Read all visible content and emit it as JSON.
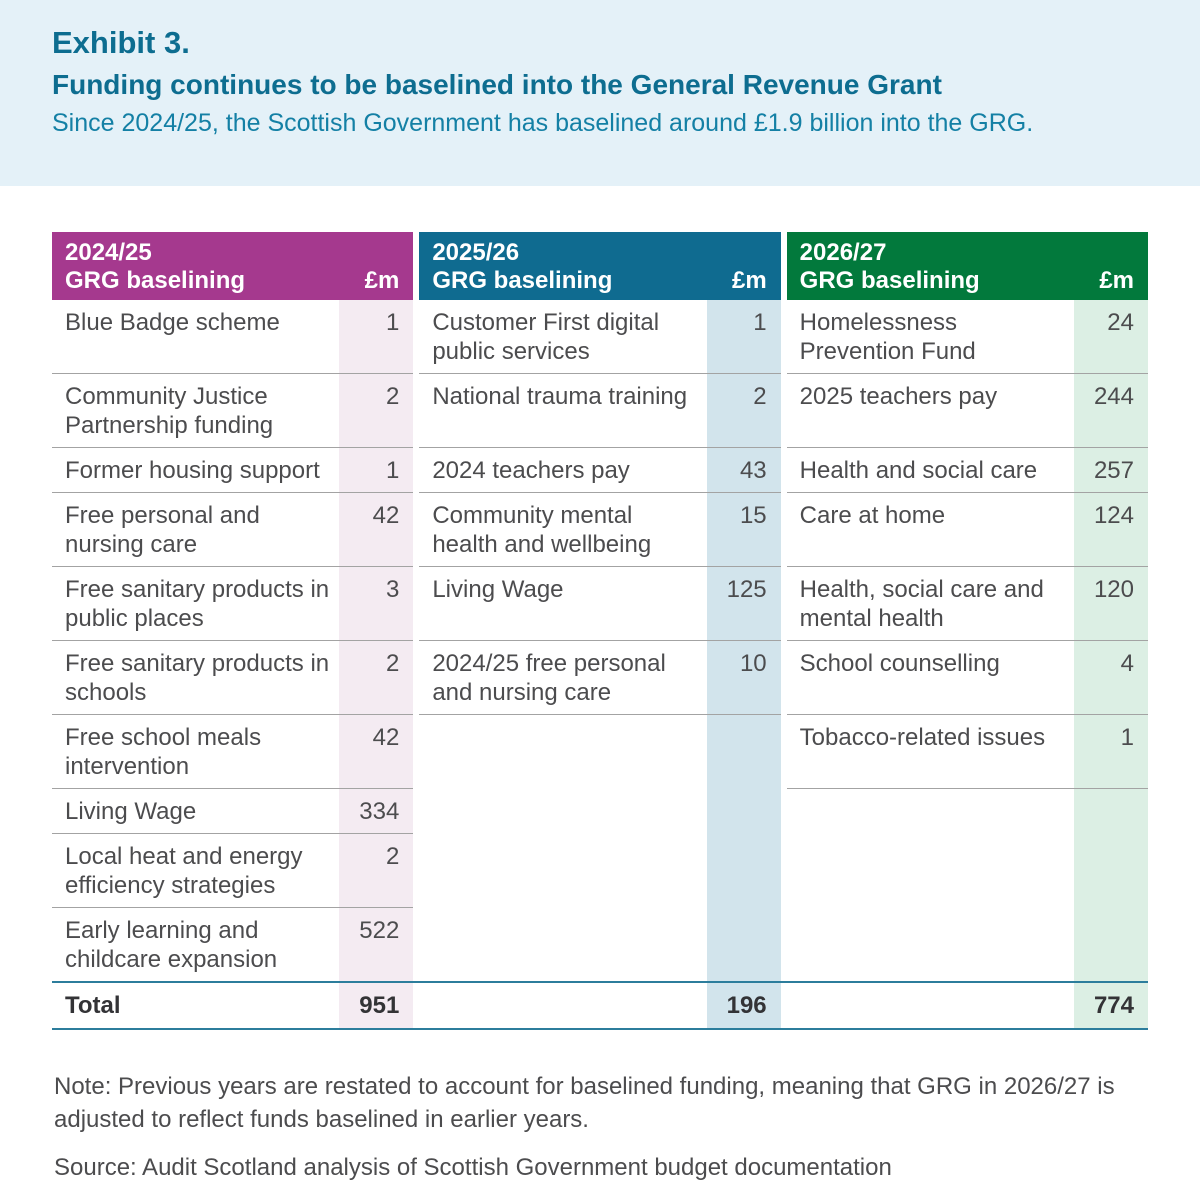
{
  "hero": {
    "exhibit": "Exhibit 3.",
    "title": "Funding continues to be baselined into the General Revenue Grant",
    "subtitle": "Since 2024/25, the Scottish Government has baselined around £1.9 billion into the GRG."
  },
  "table": {
    "total_label": "Total",
    "groups": [
      {
        "year": "2024/25",
        "label": "GRG baselining",
        "unit": "£m",
        "header_color": "#a5398e",
        "tint_color": "#f4ebf2",
        "total": "951"
      },
      {
        "year": "2025/26",
        "label": "GRG baselining",
        "unit": "£m",
        "header_color": "#0f6b90",
        "tint_color": "#d2e4ec",
        "total": "196"
      },
      {
        "year": "2026/27",
        "label": "GRG baselining",
        "unit": "£m",
        "header_color": "#02793c",
        "tint_color": "#dcefe4",
        "total": "774"
      }
    ],
    "rows": [
      [
        {
          "label": "Blue Badge scheme",
          "value": "1"
        },
        {
          "label": "Customer First digital public services",
          "value": "1"
        },
        {
          "label": "Homelessness Prevention Fund",
          "value": "24"
        }
      ],
      [
        {
          "label": "Community Justice Partnership funding",
          "value": "2"
        },
        {
          "label": "National trauma training",
          "value": "2"
        },
        {
          "label": "2025 teachers pay",
          "value": "244"
        }
      ],
      [
        {
          "label": "Former housing support",
          "value": "1"
        },
        {
          "label": "2024 teachers pay",
          "value": "43"
        },
        {
          "label": "Health and social care",
          "value": "257"
        }
      ],
      [
        {
          "label": "Free personal and nursing care",
          "value": "42"
        },
        {
          "label": "Community mental health and wellbeing",
          "value": "15"
        },
        {
          "label": "Care at home",
          "value": "124"
        }
      ],
      [
        {
          "label": "Free sanitary products in public places",
          "value": "3"
        },
        {
          "label": "Living Wage",
          "value": "125"
        },
        {
          "label": "Health, social care and mental health",
          "value": "120"
        }
      ],
      [
        {
          "label": "Free sanitary products in schools",
          "value": "2"
        },
        {
          "label": "2024/25 free personal and nursing care",
          "value": "10"
        },
        {
          "label": "School counselling",
          "value": "4"
        }
      ],
      [
        {
          "label": "Free school meals intervention",
          "value": "42"
        },
        null,
        {
          "label": "Tobacco-related issues",
          "value": "1"
        }
      ],
      [
        {
          "label": "Living Wage",
          "value": "334"
        },
        null,
        null
      ],
      [
        {
          "label": "Local heat and energy efficiency strategies",
          "value": "2"
        },
        null,
        null
      ],
      [
        {
          "label": "Early learning and childcare expansion",
          "value": "522"
        },
        null,
        null
      ]
    ]
  },
  "note": "Note: Previous years are restated to account for baselined funding, meaning that GRG in 2026/27 is adjusted to reflect funds baselined in earlier years.",
  "source": "Source: Audit Scotland analysis of Scottish Government budget documentation",
  "colors": {
    "hero_background": "#e4f1f8",
    "heading_teal": "#0d6d90",
    "subtitle_teal": "#1480a5",
    "total_rule_teal": "#2c7d9c",
    "row_rule_grey": "#a3a3a3",
    "body_text": "#4c4c4e"
  }
}
